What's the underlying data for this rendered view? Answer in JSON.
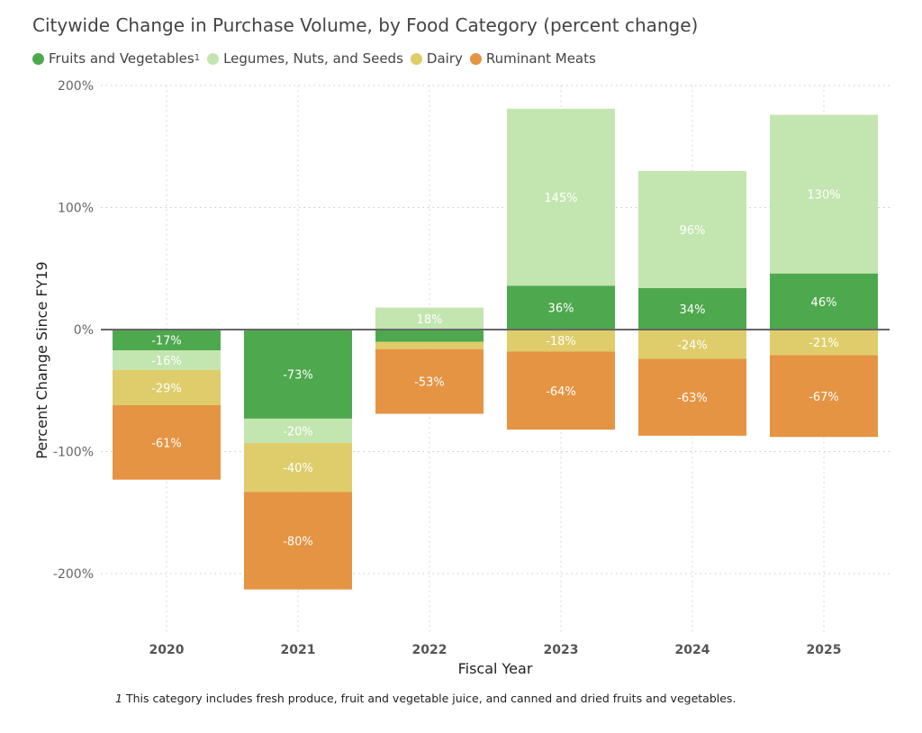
{
  "chart_data": {
    "type": "bar",
    "stacked": true,
    "title": "Citywide Change in Purchase Volume, by Food Category (percent change)",
    "xlabel": "Fiscal Year",
    "ylabel": "Percent Change Since FY19",
    "ylim": [
      -250,
      200
    ],
    "yticks": [
      200,
      100,
      0,
      -100,
      -200
    ],
    "ytick_labels": [
      "200%",
      "100%",
      "0%",
      "-100%",
      "-200%"
    ],
    "grid": true,
    "legend_position": "top-left",
    "categories": [
      "2020",
      "2021",
      "2022",
      "2023",
      "2024",
      "2025"
    ],
    "series": [
      {
        "name": "Fruits and Vegetables",
        "superscript": "1",
        "color": "#4ea84e",
        "values": [
          -17,
          -73,
          -10,
          36,
          34,
          46
        ],
        "labels": [
          "-17%",
          "-73%",
          "",
          "36%",
          "34%",
          "46%"
        ]
      },
      {
        "name": "Legumes, Nuts, and Seeds",
        "color": "#c3e5b0",
        "values": [
          -16,
          -20,
          18,
          145,
          96,
          130
        ],
        "labels": [
          "-16%",
          "-20%",
          "18%",
          "145%",
          "96%",
          "130%"
        ]
      },
      {
        "name": "Dairy",
        "color": "#decd6a",
        "values": [
          -29,
          -40,
          -6,
          -18,
          -24,
          -21
        ],
        "labels": [
          "-29%",
          "-40%",
          "",
          "-18%",
          "-24%",
          "-21%"
        ]
      },
      {
        "name": "Ruminant Meats",
        "color": "#e59443",
        "values": [
          -61,
          -80,
          -53,
          -64,
          -63,
          -67
        ],
        "labels": [
          "-61%",
          "-80%",
          "-53%",
          "-64%",
          "-63%",
          "-67%"
        ]
      }
    ]
  },
  "footnote": {
    "mark": "1",
    "text": "This category includes fresh produce, fruit and vegetable juice, and canned and dried fruits and vegetables."
  }
}
